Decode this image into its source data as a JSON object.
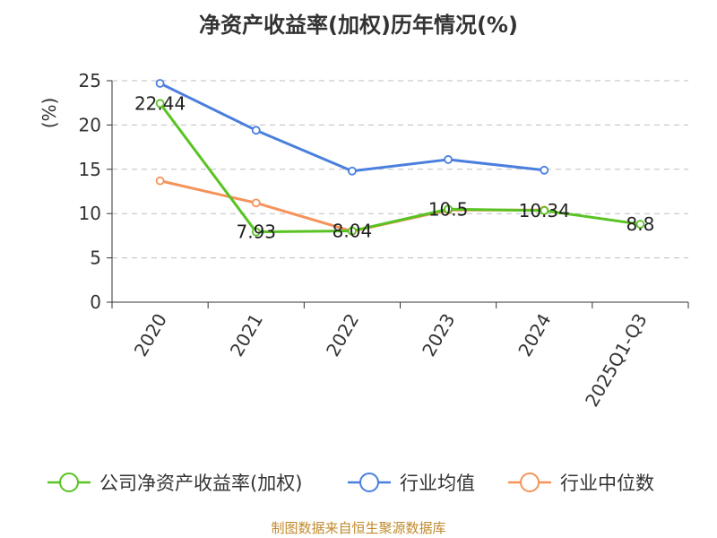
{
  "title": "净资产收益率(加权)历年情况(%)",
  "source": "制图数据来自恒生聚源数据库",
  "colors": {
    "company": "#58c322",
    "industry_avg": "#4a7fde",
    "industry_median": "#f5935a",
    "ylabel": "#d62728",
    "source": "#c08a2c",
    "grid": "#bdbdbd",
    "axis": "#333333"
  },
  "chart_data": {
    "type": "line",
    "title": "净资产收益率(加权)历年情况(%)",
    "ylabel": "(%)",
    "xlabel": "",
    "ylim": [
      0,
      25
    ],
    "yticks": [
      "0",
      "5",
      "10",
      "15",
      "20",
      "25"
    ],
    "categories": [
      "2020",
      "2021",
      "2022",
      "2023",
      "2024",
      "2025Q1-Q3"
    ],
    "series": [
      {
        "name": "公司净资产收益率(加权)",
        "key": "company",
        "values": [
          22.44,
          7.93,
          8.04,
          10.5,
          10.34,
          8.8
        ],
        "labels": [
          "22.44",
          "7.93",
          "8.04",
          "10.5",
          "10.34",
          "8.8"
        ]
      },
      {
        "name": "行业均值",
        "key": "industry_avg",
        "values": [
          24.7,
          19.4,
          14.8,
          16.1,
          14.9,
          null
        ]
      },
      {
        "name": "行业中位数",
        "key": "industry_median",
        "values": [
          13.7,
          11.2,
          8.0,
          10.4,
          10.4,
          null
        ]
      }
    ],
    "legend_position": "bottom"
  }
}
